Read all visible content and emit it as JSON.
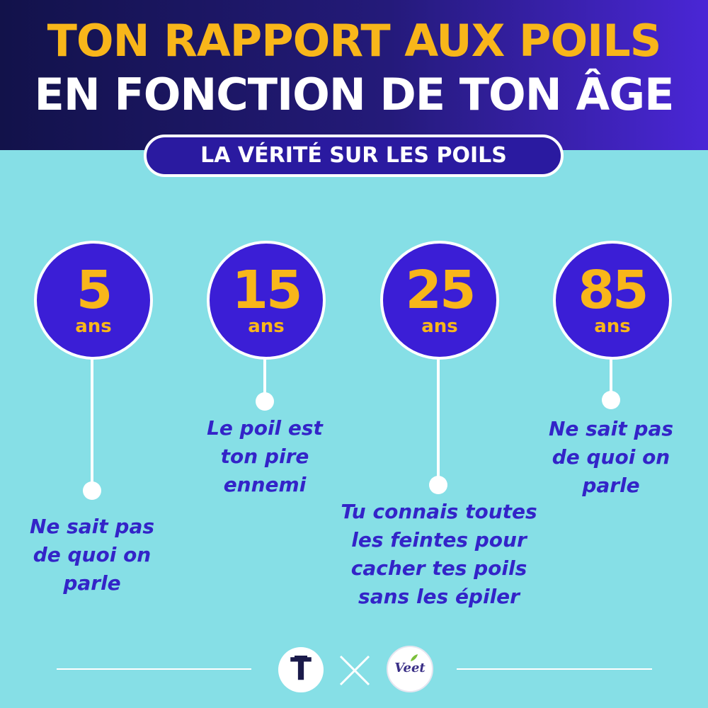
{
  "header": {
    "title_line1": "TON RAPPORT AUX POILS",
    "title_line2": "EN FONCTION DE TON ÂGE",
    "subtitle": "LA VÉRITÉ SUR LES POILS"
  },
  "colors": {
    "background": "#86dfe6",
    "header_dark": "#12124a",
    "accent_yellow": "#f8b61a",
    "circle_purple": "#3b1ed6",
    "caption_text": "#3324c8"
  },
  "ages": [
    {
      "number": "5",
      "unit": "ans",
      "caption": "Ne sait pas\nde quoi on\nparle"
    },
    {
      "number": "15",
      "unit": "ans",
      "caption": "Le poil est\nton pire\nennemi"
    },
    {
      "number": "25",
      "unit": "ans",
      "caption": "Tu connais toutes\nles feintes pour\ncacher tes poils\nsans les épiler"
    },
    {
      "number": "85",
      "unit": "ans",
      "caption": "Ne sait pas\nde quoi on\nparle"
    }
  ],
  "footer": {
    "left_logo_letter": "T",
    "separator": "×",
    "right_logo_text": "Veet"
  }
}
